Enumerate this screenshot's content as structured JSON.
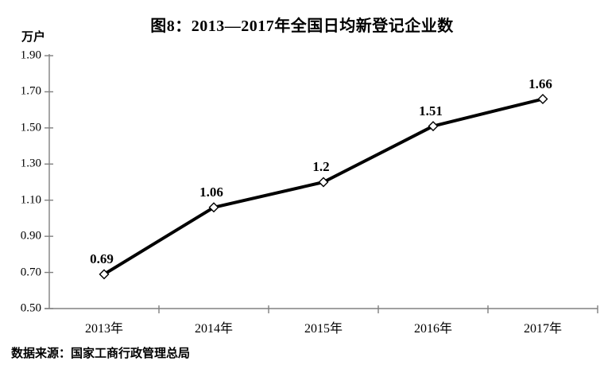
{
  "title": "图8：2013—2017年全国日均新登记企业数",
  "unit_label": "万户",
  "source": "数据来源：国家工商行政管理总局",
  "colors": {
    "background": "#ffffff",
    "axis": "#808080",
    "line": "#000000",
    "marker_fill": "#ffffff",
    "marker_stroke": "#000000",
    "text": "#000000"
  },
  "chart_data": {
    "type": "line",
    "title": "图8：2013—2017年全国日均新登记企业数",
    "ylabel": "万户",
    "categories": [
      "2013年",
      "2014年",
      "2015年",
      "2016年",
      "2017年"
    ],
    "values": [
      0.69,
      1.06,
      1.2,
      1.51,
      1.66
    ],
    "data_labels": [
      "0.69",
      "1.06",
      "1.2",
      "1.51",
      "1.66"
    ],
    "ylim": [
      0.5,
      1.9
    ],
    "ytick_step": 0.2,
    "ytick_labels": [
      "1.90",
      "1.70",
      "1.50",
      "1.30",
      "1.10",
      "0.90",
      "0.70",
      "0.50"
    ],
    "grid": false,
    "legend_position": "none",
    "marker": "diamond",
    "line_width": 4
  }
}
